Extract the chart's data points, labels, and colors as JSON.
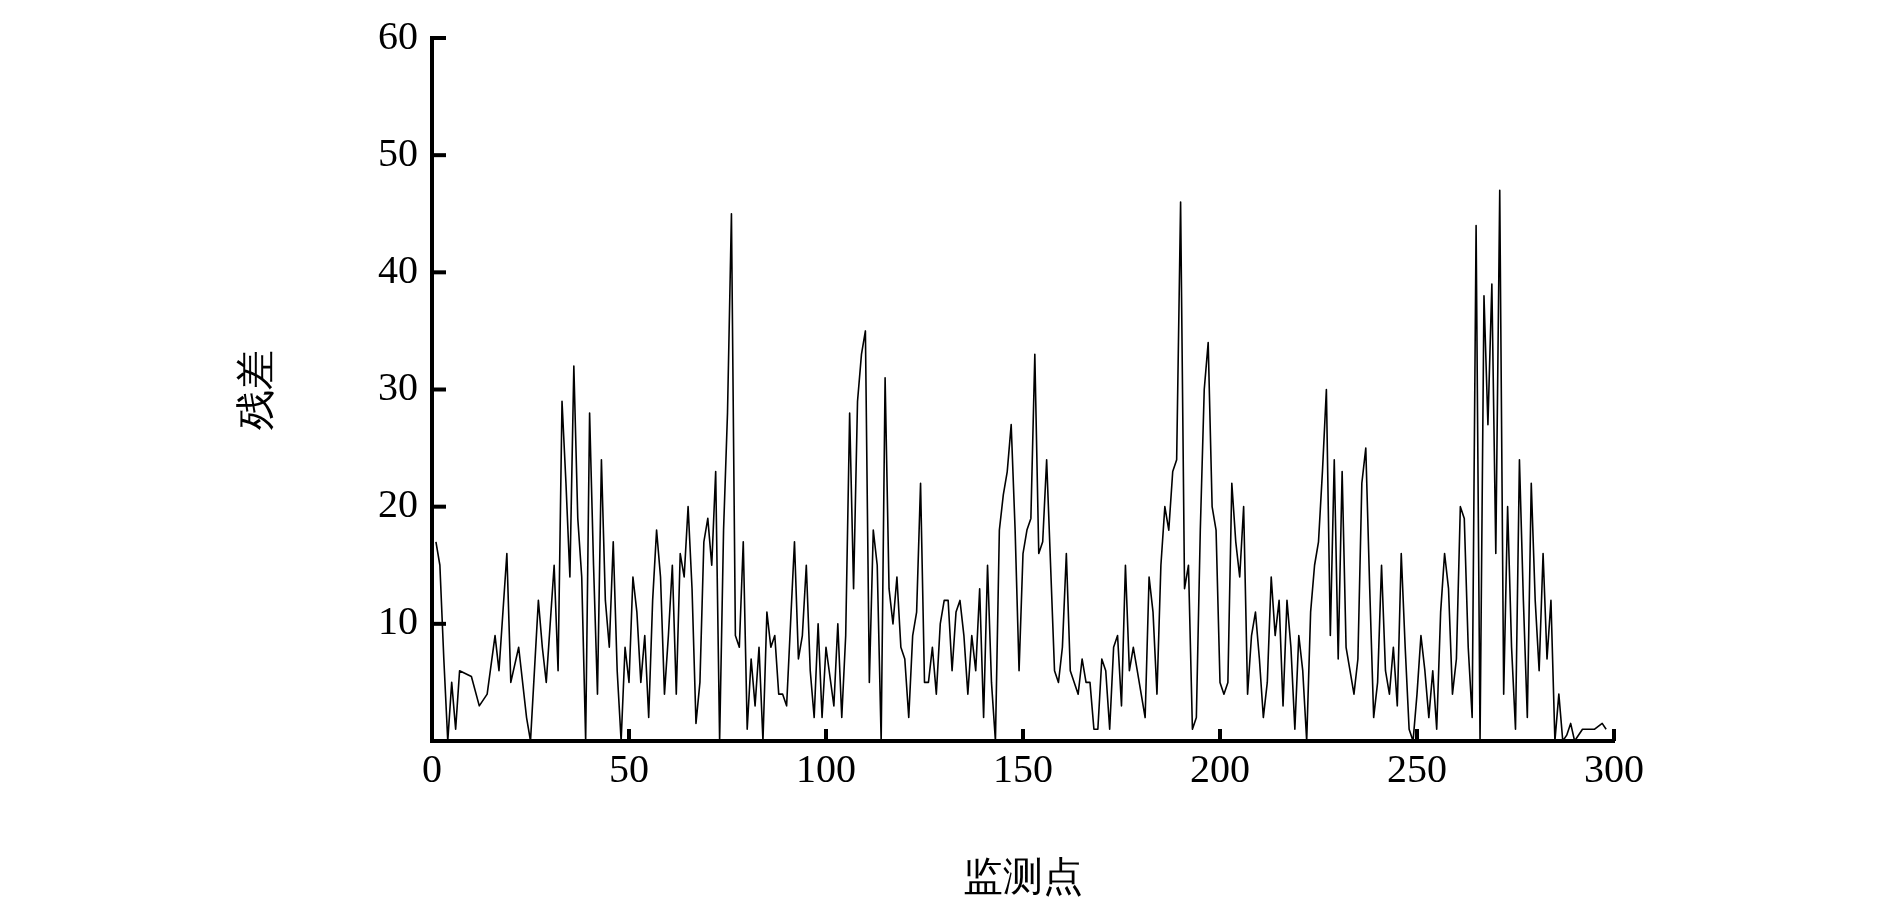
{
  "chart_data": {
    "type": "line",
    "xlabel": "监测点",
    "ylabel": "残差",
    "xlim": [
      0,
      300
    ],
    "xticks": [
      0,
      50,
      100,
      150,
      200,
      250,
      300
    ],
    "ylim": [
      0,
      60
    ],
    "yticks": [
      {
        "value": 0,
        "label": null
      },
      10,
      20,
      30,
      40,
      50,
      60
    ],
    "grid": false,
    "legend": false,
    "marker": "none",
    "line_style": "solid",
    "series": [
      {
        "color": "#000000",
        "x": [
          1,
          2,
          3,
          4,
          5,
          6,
          7,
          10,
          12,
          14,
          16,
          17,
          19,
          20,
          22,
          24,
          25,
          27,
          28,
          29,
          31,
          32,
          33,
          34,
          35,
          36,
          37,
          38,
          39,
          40,
          41,
          42,
          43,
          44,
          45,
          46,
          47,
          48,
          49,
          50,
          51,
          52,
          53,
          54,
          55,
          56,
          57,
          58,
          59,
          60,
          61,
          62,
          63,
          64,
          65,
          66,
          67,
          68,
          69,
          70,
          71,
          72,
          73,
          74,
          75,
          76,
          77,
          78,
          79,
          80,
          81,
          82,
          83,
          84,
          85,
          86,
          87,
          88,
          89,
          90,
          91,
          92,
          93,
          94,
          95,
          96,
          97,
          98,
          99,
          100,
          102,
          103,
          104,
          105,
          106,
          107,
          108,
          109,
          110,
          111,
          112,
          113,
          114,
          115,
          116,
          117,
          118,
          119,
          120,
          121,
          122,
          123,
          124,
          125,
          126,
          127,
          128,
          129,
          130,
          131,
          132,
          133,
          134,
          135,
          136,
          137,
          138,
          139,
          140,
          141,
          142,
          143,
          144,
          145,
          146,
          147,
          148,
          149,
          150,
          151,
          152,
          153,
          154,
          155,
          156,
          157,
          158,
          159,
          160,
          161,
          162,
          163,
          164,
          165,
          166,
          167,
          168,
          169,
          170,
          171,
          172,
          173,
          174,
          175,
          176,
          177,
          178,
          179,
          180,
          181,
          182,
          183,
          184,
          185,
          186,
          187,
          188,
          189,
          190,
          191,
          192,
          193,
          194,
          195,
          196,
          197,
          198,
          199,
          200,
          201,
          202,
          203,
          204,
          205,
          206,
          207,
          208,
          209,
          210,
          211,
          212,
          213,
          214,
          215,
          216,
          217,
          218,
          219,
          220,
          221,
          222,
          223,
          224,
          225,
          226,
          227,
          228,
          229,
          230,
          231,
          232,
          233,
          234,
          235,
          236,
          237,
          238,
          239,
          240,
          241,
          242,
          243,
          244,
          245,
          246,
          247,
          248,
          249,
          250,
          251,
          252,
          253,
          254,
          255,
          256,
          257,
          258,
          259,
          260,
          261,
          262,
          263,
          264,
          265,
          266,
          267,
          268,
          269,
          270,
          271,
          272,
          273,
          274,
          275,
          276,
          277,
          278,
          279,
          280,
          281,
          282,
          283,
          284,
          285,
          286,
          287,
          288,
          289,
          290,
          292,
          295,
          297,
          298
        ],
        "values": [
          17,
          15,
          7,
          0,
          5,
          1,
          6,
          5.5,
          3,
          4,
          9,
          6,
          16,
          5,
          8,
          2,
          0,
          12,
          8,
          5,
          15,
          6,
          29,
          22,
          14,
          32,
          19,
          14,
          0,
          28,
          15,
          4,
          24,
          12,
          8,
          17,
          6,
          0,
          8,
          5,
          14,
          11,
          5,
          9,
          2,
          12,
          18,
          14,
          4,
          9,
          15,
          4,
          16,
          14,
          20,
          13,
          1.5,
          5,
          17,
          19,
          15,
          23,
          0,
          18,
          28,
          45,
          9,
          8,
          17,
          1,
          7,
          3,
          8,
          0,
          11,
          8,
          9,
          4,
          4,
          3,
          10,
          17,
          7,
          9,
          15,
          6,
          2,
          10,
          2,
          8,
          3,
          10,
          2,
          9,
          28,
          13,
          29,
          33,
          35,
          5,
          18,
          15,
          0,
          31,
          13,
          10,
          14,
          8,
          7,
          2,
          9,
          11,
          22,
          5,
          5,
          8,
          4,
          10,
          12,
          12,
          6,
          11,
          12,
          9,
          4,
          9,
          6,
          13,
          2,
          15,
          5,
          0,
          18,
          21,
          23,
          27,
          18,
          6,
          16,
          18,
          19,
          33,
          16,
          17,
          24,
          15,
          6,
          5,
          8,
          16,
          6,
          5,
          4,
          7,
          5,
          5,
          1,
          1,
          7,
          6,
          1,
          8,
          9,
          3,
          15,
          6,
          8,
          6,
          4,
          2,
          14,
          11,
          4,
          15,
          20,
          18,
          23,
          24,
          46,
          13,
          15,
          1,
          2,
          18,
          30,
          34,
          20,
          18,
          5,
          4,
          5,
          22,
          17,
          14,
          20,
          4,
          9,
          11,
          7,
          2,
          5,
          14,
          9,
          12,
          3,
          12,
          8,
          1,
          9,
          6,
          0,
          11,
          15,
          17,
          23,
          30,
          9,
          24,
          7,
          23,
          8,
          6,
          4,
          7,
          22,
          25,
          13,
          2,
          5,
          15,
          6,
          4,
          8,
          3,
          16,
          8,
          1,
          0,
          4,
          9,
          6,
          2,
          6,
          1,
          11,
          16,
          13,
          4,
          7,
          20,
          19,
          8,
          2,
          44,
          0,
          38,
          27,
          39,
          16,
          47,
          4,
          20,
          8,
          1,
          24,
          12,
          2,
          22,
          12,
          6,
          16,
          7,
          12,
          0,
          4,
          0,
          0.5,
          1.5,
          0,
          1,
          1,
          1.5,
          1
        ]
      }
    ]
  }
}
